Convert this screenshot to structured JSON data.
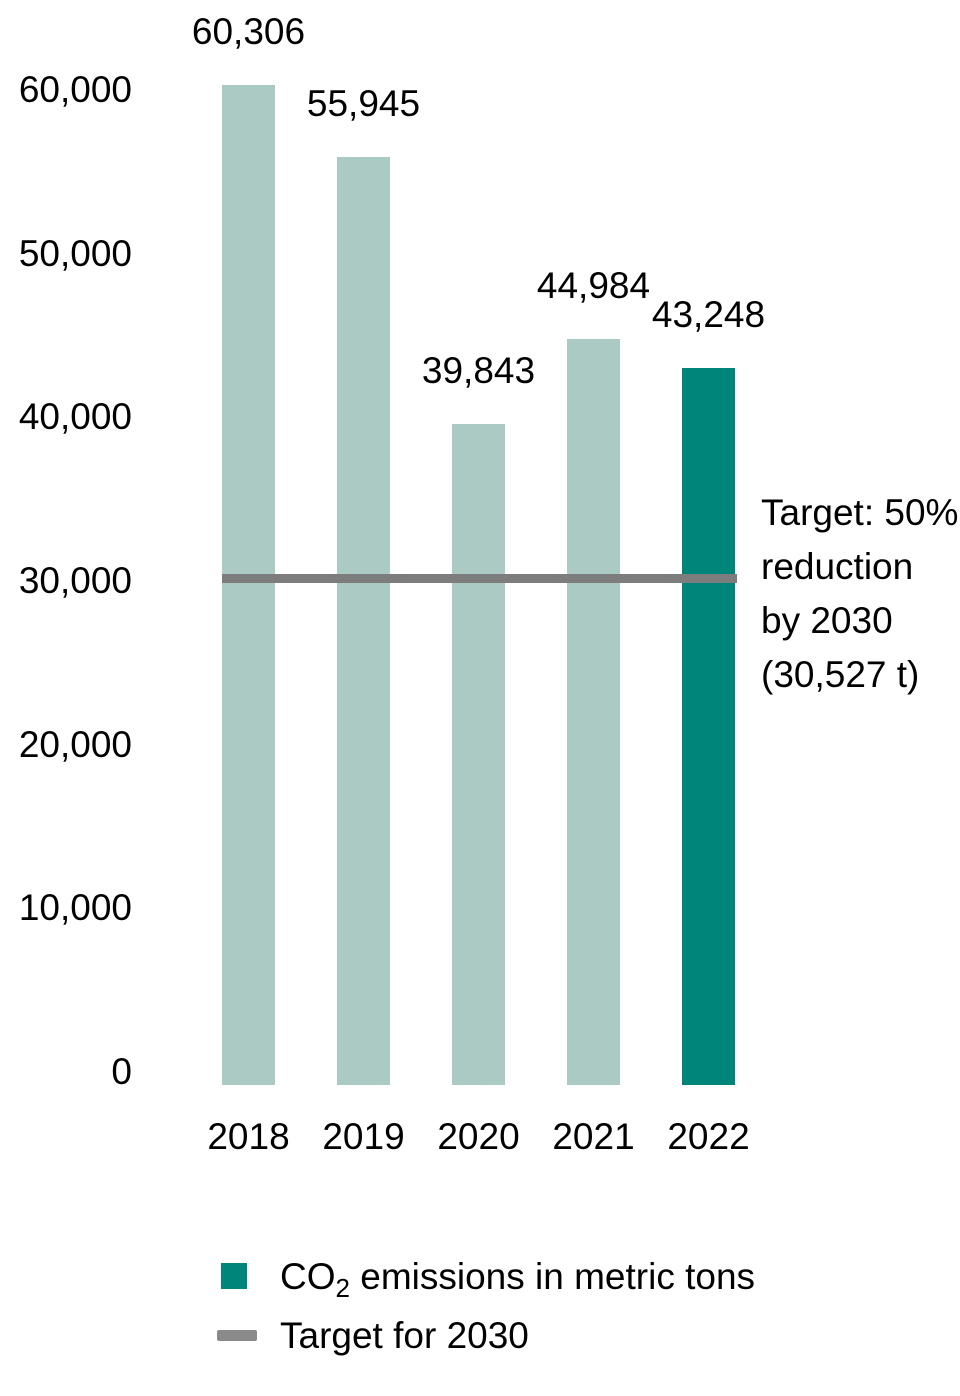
{
  "chart_data": {
    "type": "bar",
    "title": "",
    "xlabel": "",
    "ylabel": "",
    "categories": [
      "2018",
      "2019",
      "2020",
      "2021",
      "2022"
    ],
    "series": [
      {
        "name": "CO2 emissions in metric tons",
        "values": [
          60306,
          55945,
          39843,
          44984,
          43248
        ]
      }
    ],
    "value_labels": [
      "60,306",
      "55,945",
      "39,843",
      "44,984",
      "43,248"
    ],
    "highlight_index": 4,
    "ylim": [
      0,
      62000
    ],
    "grid": false,
    "yticks": [
      {
        "value": 0,
        "label": "0"
      },
      {
        "value": 10000,
        "label": "10,000"
      },
      {
        "value": 20000,
        "label": "20,000"
      },
      {
        "value": 30000,
        "label": "30,000"
      },
      {
        "value": 40000,
        "label": "40,000"
      },
      {
        "value": 50000,
        "label": "50,000"
      },
      {
        "value": 60000,
        "label": "60,000"
      }
    ],
    "target": {
      "value": 30527,
      "annotation_lines": [
        "Target: 50%",
        "reduction",
        "by 2030",
        "(30,527 t)"
      ]
    },
    "legend_position": "bottom-left",
    "legend": [
      {
        "swatch": "square",
        "label_prefix": "CO",
        "label_sub": "2",
        "label_suffix": " emissions in metric tons"
      },
      {
        "swatch": "dash",
        "label": "Target for 2030"
      }
    ]
  },
  "colors": {
    "bar_normal": "#ABCAC4",
    "bar_highlight": "#00857B",
    "target_line": "#7D7D7D",
    "legend_dash": "#8A8A8A",
    "text": "#000000",
    "background": "#FFFFFF"
  }
}
